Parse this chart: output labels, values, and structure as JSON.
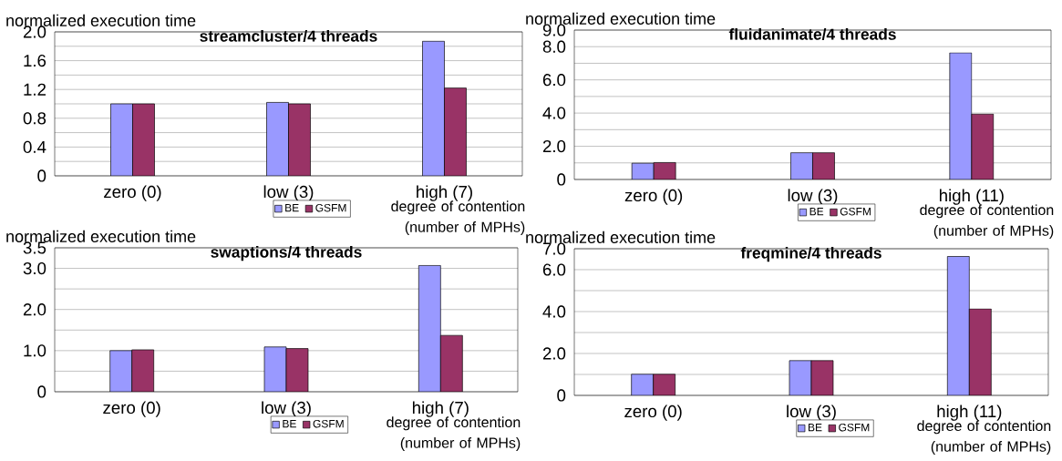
{
  "chart_data": [
    {
      "type": "bar",
      "title": "streamcluster/4 threads",
      "ylabel": "normalized execution time",
      "xlabel": "degree of contention (number of MPHs)",
      "categories": [
        "zero (0)",
        "low (3)",
        "high (7)"
      ],
      "series": [
        {
          "name": "BE",
          "color": "#9999ff",
          "values": [
            1.0,
            1.02,
            1.87
          ]
        },
        {
          "name": "GSFM",
          "color": "#993366",
          "values": [
            1.0,
            1.0,
            1.22
          ]
        }
      ],
      "ylim": [
        0,
        2.0
      ],
      "yticks": [
        0,
        {
          "value": 0.2,
          "label": null
        },
        {
          "value": 0.4,
          "label": "0.4"
        },
        {
          "value": 0.6,
          "label": null
        },
        {
          "value": 0.8,
          "label": "0.8"
        },
        {
          "value": 1.0,
          "label": null
        },
        {
          "value": 1.2,
          "label": "1.2"
        },
        {
          "value": 1.4,
          "label": null
        },
        {
          "value": 1.6,
          "label": "1.6"
        },
        {
          "value": 1.8,
          "label": null
        },
        {
          "value": 2.0,
          "label": "2.0"
        }
      ],
      "grid": "y",
      "legend": "bottom"
    },
    {
      "type": "bar",
      "title": "fluidanimate/4 threads",
      "ylabel": "normalized execution time",
      "xlabel": "degree of contention (number of MPHs)",
      "categories": [
        "zero (0)",
        "low (3)",
        "high (11)"
      ],
      "series": [
        {
          "name": "BE",
          "color": "#9999ff",
          "values": [
            0.98,
            1.61,
            7.63
          ]
        },
        {
          "name": "GSFM",
          "color": "#993366",
          "values": [
            1.02,
            1.61,
            3.94
          ]
        }
      ],
      "ylim": [
        0,
        9.0
      ],
      "yticks": [
        0,
        {
          "value": 1.0,
          "label": null
        },
        {
          "value": 2.0,
          "label": "2.0"
        },
        {
          "value": 3.0,
          "label": null
        },
        {
          "value": 4.0,
          "label": "4.0"
        },
        {
          "value": 5.0,
          "label": null
        },
        {
          "value": 6.0,
          "label": "6.0"
        },
        {
          "value": 7.0,
          "label": null
        },
        {
          "value": 8.0,
          "label": "8.0"
        },
        {
          "value": 9.0,
          "label": "9.0"
        }
      ],
      "grid": "y",
      "legend": "bottom"
    },
    {
      "type": "bar",
      "title": "swaptions/4 threads",
      "ylabel": "normalized execution time",
      "xlabel": "degree of contention (number of MPHs)",
      "categories": [
        "zero (0)",
        "low (3)",
        "high (7)"
      ],
      "series": [
        {
          "name": "BE",
          "color": "#9999ff",
          "values": [
            1.0,
            1.09,
            3.07
          ]
        },
        {
          "name": "GSFM",
          "color": "#993366",
          "values": [
            1.02,
            1.05,
            1.37
          ]
        }
      ],
      "ylim": [
        0,
        3.5
      ],
      "yticks": [
        0,
        {
          "value": 0.5,
          "label": null
        },
        {
          "value": 1.0,
          "label": "1.0"
        },
        {
          "value": 1.5,
          "label": null
        },
        {
          "value": 2.0,
          "label": "2.0"
        },
        {
          "value": 2.5,
          "label": null
        },
        {
          "value": 3.0,
          "label": "3.0"
        },
        {
          "value": 3.5,
          "label": "3.5"
        }
      ],
      "grid": "y",
      "legend": "bottom"
    },
    {
      "type": "bar",
      "title": "freqmine/4 threads",
      "ylabel": "normalized execution time",
      "xlabel": "degree of contention (number of MPHs)",
      "categories": [
        "zero (0)",
        "low (3)",
        "high (11)"
      ],
      "series": [
        {
          "name": "BE",
          "color": "#9999ff",
          "values": [
            1.01,
            1.66,
            6.63
          ]
        },
        {
          "name": "GSFM",
          "color": "#993366",
          "values": [
            1.01,
            1.66,
            4.13
          ]
        }
      ],
      "ylim": [
        0,
        7.0
      ],
      "yticks": [
        0,
        {
          "value": 1.0,
          "label": null
        },
        {
          "value": 2.0,
          "label": "2.0"
        },
        {
          "value": 3.0,
          "label": null
        },
        {
          "value": 4.0,
          "label": "4.0"
        },
        {
          "value": 5.0,
          "label": null
        },
        {
          "value": 6.0,
          "label": "6.0"
        },
        {
          "value": 7.0,
          "label": "7.0"
        }
      ],
      "grid": "y",
      "legend": "bottom"
    }
  ]
}
